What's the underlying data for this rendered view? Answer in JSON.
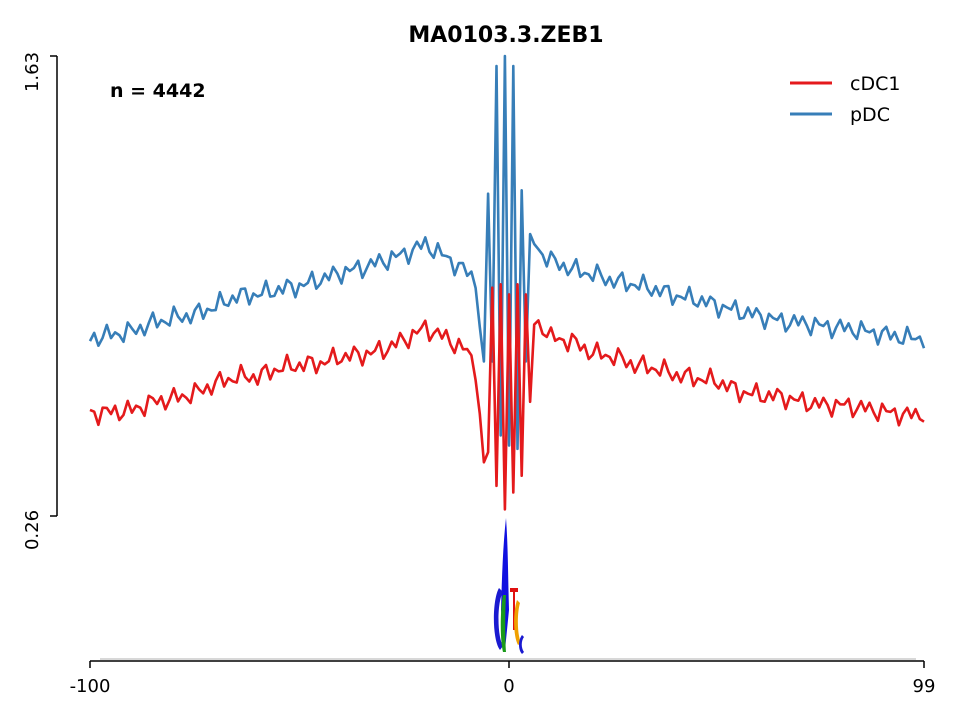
{
  "chart_data": {
    "type": "line",
    "title": "MA0103.3.ZEB1",
    "annotation": "n = 4442",
    "xlabel": "",
    "ylabel": "",
    "xlim": [
      -100,
      99
    ],
    "ylim": [
      0.26,
      1.63
    ],
    "x_ticks": [
      "-100",
      "0",
      "99"
    ],
    "y_ticks": [
      "0.26",
      "1.63"
    ],
    "grid": false,
    "legend_position": "top-right",
    "series": [
      {
        "name": "cDC1",
        "color": "#e41a1c",
        "x": [
          -100,
          -95,
          -90,
          -85,
          -80,
          -75,
          -70,
          -65,
          -60,
          -55,
          -50,
          -45,
          -40,
          -35,
          -30,
          -25,
          -20,
          -15,
          -10,
          -8,
          -6,
          -5,
          -4,
          -3,
          -2,
          -1,
          0,
          1,
          2,
          3,
          4,
          5,
          6,
          8,
          10,
          15,
          20,
          25,
          30,
          35,
          40,
          45,
          50,
          55,
          60,
          65,
          70,
          75,
          80,
          85,
          90,
          95,
          99
        ],
        "values": [
          0.565,
          0.57,
          0.575,
          0.6,
          0.61,
          0.625,
          0.655,
          0.675,
          0.675,
          0.7,
          0.71,
          0.715,
          0.735,
          0.74,
          0.755,
          0.785,
          0.82,
          0.79,
          0.75,
          0.7,
          0.42,
          0.45,
          0.94,
          0.35,
          0.95,
          0.28,
          0.92,
          0.33,
          0.95,
          0.38,
          0.92,
          0.6,
          0.83,
          0.825,
          0.79,
          0.78,
          0.745,
          0.735,
          0.71,
          0.7,
          0.68,
          0.67,
          0.66,
          0.63,
          0.62,
          0.615,
          0.6,
          0.59,
          0.59,
          0.58,
          0.57,
          0.56,
          0.565
        ]
      },
      {
        "name": "pDC",
        "color": "#377eb8",
        "x": [
          -100,
          -95,
          -90,
          -85,
          -80,
          -75,
          -70,
          -65,
          -60,
          -55,
          -50,
          -45,
          -40,
          -35,
          -30,
          -25,
          -20,
          -15,
          -10,
          -8,
          -6,
          -5,
          -4,
          -3,
          -2,
          -1,
          0,
          1,
          2,
          3,
          4,
          5,
          6,
          8,
          10,
          15,
          20,
          25,
          30,
          35,
          40,
          45,
          50,
          55,
          60,
          65,
          70,
          75,
          80,
          85,
          90,
          95,
          99
        ],
        "values": [
          0.79,
          0.8,
          0.81,
          0.835,
          0.85,
          0.86,
          0.885,
          0.915,
          0.92,
          0.935,
          0.945,
          0.965,
          0.985,
          1.0,
          1.02,
          1.04,
          1.07,
          1.03,
          0.985,
          0.96,
          0.72,
          1.22,
          0.72,
          1.6,
          0.5,
          1.63,
          0.47,
          1.6,
          0.46,
          1.23,
          0.72,
          1.1,
          1.07,
          1.04,
          1.02,
          0.995,
          0.98,
          0.96,
          0.95,
          0.935,
          0.915,
          0.905,
          0.885,
          0.87,
          0.855,
          0.84,
          0.835,
          0.825,
          0.82,
          0.81,
          0.8,
          0.79,
          0.79
        ]
      }
    ]
  }
}
